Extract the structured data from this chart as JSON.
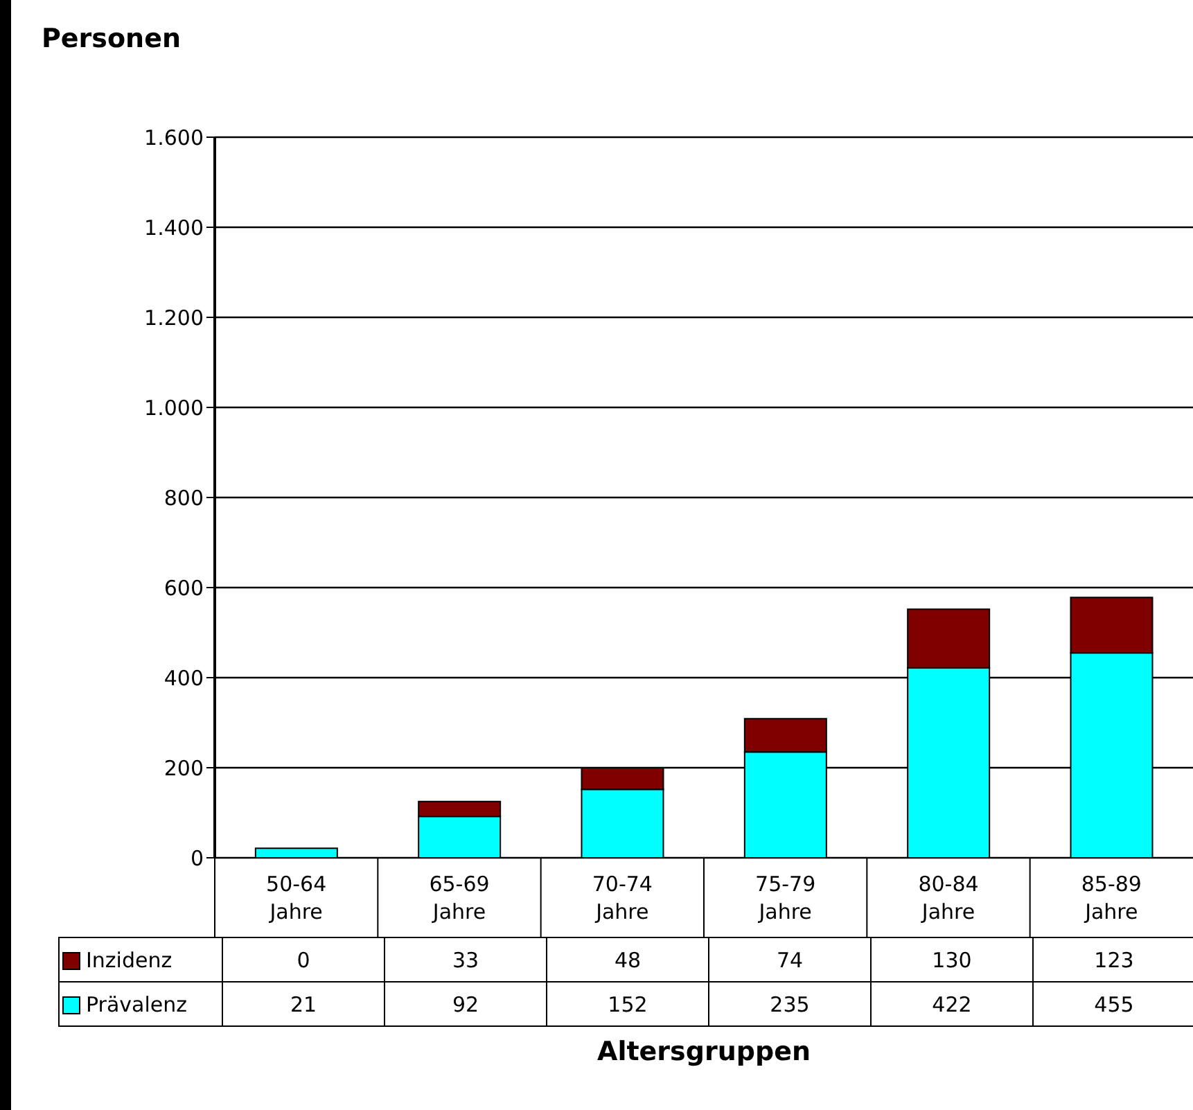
{
  "chart_data": {
    "type": "bar",
    "stacked": true,
    "ylabel": "Personen",
    "xlabel": "Altersgruppen",
    "categories": [
      "50-64 Jahre",
      "65-69 Jahre",
      "70-74 Jahre",
      "75-79 Jahre",
      "80-84 Jahre",
      "85-89 Jahre"
    ],
    "series": [
      {
        "name": "Prävalenz",
        "color": "#00ffff",
        "values": [
          21,
          92,
          152,
          235,
          422,
          455
        ]
      },
      {
        "name": "Inzidenz",
        "color": "#800000",
        "values": [
          0,
          33,
          48,
          74,
          130,
          123
        ]
      }
    ],
    "ylim": [
      0,
      1600
    ],
    "yticks": [
      0,
      200,
      400,
      600,
      800,
      {
        "value": 1000,
        "label": "1.000"
      },
      {
        "value": 1200,
        "label": "1.200"
      },
      {
        "value": 1400,
        "label": "1.400"
      },
      {
        "value": 1600,
        "label": "1.600"
      }
    ],
    "grid": "y",
    "legend": "bottom",
    "data_labels": true
  }
}
